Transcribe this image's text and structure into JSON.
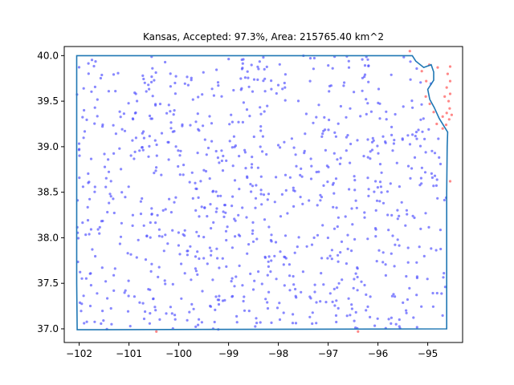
{
  "chart_data": {
    "type": "scatter",
    "title": "Kansas, Accepted: 97.3%, Area: 215765.40 km^2",
    "xlabel": "",
    "ylabel": "",
    "xlim": [
      -102.3,
      -94.3
    ],
    "ylim": [
      36.85,
      40.1
    ],
    "xticks": [
      -102,
      -101,
      -100,
      -99,
      -98,
      -97,
      -96,
      -95
    ],
    "xtick_labels": [
      "−102",
      "−101",
      "−100",
      "−99",
      "−98",
      "−97",
      "−96",
      "−95"
    ],
    "yticks": [
      37.0,
      37.5,
      38.0,
      38.5,
      39.0,
      39.5,
      40.0
    ],
    "ytick_labels": [
      "37.0",
      "37.5",
      "38.0",
      "38.5",
      "39.0",
      "39.5",
      "40.0"
    ],
    "grid": false,
    "colors": {
      "accepted": "#5555ff",
      "rejected": "#ff5555",
      "boundary": "#1f77b4"
    },
    "boundary": [
      [
        -102.05,
        40.0
      ],
      [
        -95.31,
        40.0
      ],
      [
        -95.24,
        39.94
      ],
      [
        -95.08,
        39.87
      ],
      [
        -94.93,
        39.9
      ],
      [
        -94.88,
        39.82
      ],
      [
        -94.88,
        39.73
      ],
      [
        -95.0,
        39.63
      ],
      [
        -94.96,
        39.52
      ],
      [
        -94.87,
        39.43
      ],
      [
        -94.77,
        39.31
      ],
      [
        -94.6,
        39.16
      ],
      [
        -94.61,
        39.0
      ],
      [
        -94.62,
        38.5
      ],
      [
        -94.62,
        38.0
      ],
      [
        -94.62,
        37.5
      ],
      [
        -94.62,
        37.0
      ],
      [
        -102.04,
        36.99
      ],
      [
        -102.05,
        37.5
      ],
      [
        -102.05,
        38.0
      ],
      [
        -102.05,
        38.5
      ],
      [
        -102.05,
        39.0
      ],
      [
        -102.05,
        39.5
      ],
      [
        -102.05,
        40.0
      ]
    ],
    "series": [
      {
        "points": [],
        "count": 920,
        "seed": 73
      },
      {
        "points": [
          [
            -94.55,
            39.88
          ],
          [
            -94.6,
            39.8
          ],
          [
            -94.55,
            39.72
          ],
          [
            -94.62,
            39.65
          ],
          [
            -94.55,
            39.58
          ],
          [
            -94.58,
            39.5
          ],
          [
            -94.56,
            39.42
          ],
          [
            -94.62,
            39.37
          ],
          [
            -94.7,
            39.33
          ],
          [
            -94.57,
            39.3
          ],
          [
            -94.63,
            39.24
          ],
          [
            -94.52,
            39.35
          ],
          [
            -94.88,
            39.38
          ],
          [
            -94.82,
            39.25
          ],
          [
            -94.7,
            39.2
          ],
          [
            -94.96,
            39.47
          ],
          [
            -95.04,
            39.55
          ],
          [
            -95.03,
            39.72
          ],
          [
            -95.12,
            39.83
          ],
          [
            -94.97,
            39.9
          ],
          [
            -94.55,
            38.62
          ],
          [
            -100.45,
            36.97
          ],
          [
            -96.4,
            36.97
          ],
          [
            -95.36,
            40.05
          ],
          [
            -94.8,
            39.87
          ],
          [
            -94.66,
            39.55
          ]
        ]
      }
    ]
  }
}
